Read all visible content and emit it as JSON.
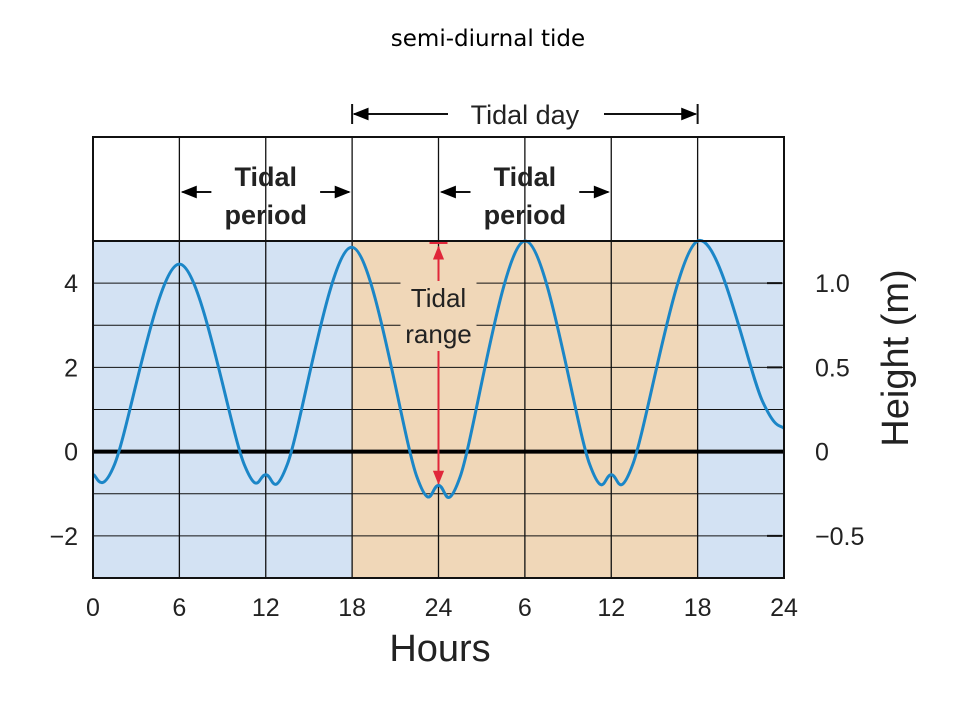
{
  "page_title": "semi-diurnal tide",
  "chart_data": {
    "type": "line",
    "title": "semi-diurnal tide",
    "xlabel": "Hours",
    "ylabel": "Height (m)",
    "x_ticks": [
      "0",
      "6",
      "12",
      "18",
      "24",
      "6",
      "12",
      "18",
      "24"
    ],
    "x_range": [
      0,
      48
    ],
    "y_left_ticks": [
      {
        "value": 4,
        "label": "4"
      },
      {
        "value": 2,
        "label": "2"
      },
      {
        "value": 0,
        "label": "0"
      },
      {
        "value": -2,
        "label": "−2"
      }
    ],
    "y_right_ticks": [
      {
        "value": 1.0,
        "label": "1.0"
      },
      {
        "value": 0.5,
        "label": "0.5"
      },
      {
        "value": 0,
        "label": "0"
      },
      {
        "value": -0.5,
        "label": "−0.5"
      }
    ],
    "y_range": [
      -3,
      5
    ],
    "grid": true,
    "shaded_interval": [
      18,
      42
    ],
    "colors": {
      "background": "#d3e2f3",
      "tidal_day": "#f0d7b8",
      "line": "#1b86c7",
      "range_arrow": "#e0273a",
      "zero_line": "#000000"
    },
    "series": [
      {
        "values": [
          {
            "x": 0,
            "y": -0.55
          },
          {
            "x": 1.5,
            "y": -0.3
          },
          {
            "x": 6,
            "y": 4.45
          },
          {
            "x": 10.5,
            "y": -0.3
          },
          {
            "x": 12,
            "y": -0.55
          },
          {
            "x": 13.5,
            "y": -0.3
          },
          {
            "x": 18,
            "y": 4.85
          },
          {
            "x": 22.5,
            "y": -0.6
          },
          {
            "x": 24,
            "y": -0.8
          },
          {
            "x": 25.5,
            "y": -0.6
          },
          {
            "x": 30,
            "y": 5.0
          },
          {
            "x": 34.5,
            "y": -0.3
          },
          {
            "x": 36,
            "y": -0.55
          },
          {
            "x": 37.5,
            "y": -0.3
          },
          {
            "x": 42,
            "y": 5.0
          },
          {
            "x": 46.5,
            "y": 1.2
          },
          {
            "x": 48,
            "y": 0.55
          }
        ]
      }
    ],
    "annotations": {
      "tidal_day": {
        "label": "Tidal day",
        "from": 18,
        "to": 42
      },
      "tidal_periods": [
        {
          "label_line1": "Tidal",
          "label_line2": "period",
          "from": 6,
          "to": 18
        },
        {
          "label_line1": "Tidal",
          "label_line2": "period",
          "from": 24,
          "to": 36
        }
      ],
      "tidal_range": {
        "label_line1": "Tidal",
        "label_line2": "range",
        "x": 24,
        "from": -0.8,
        "to": 5.0
      }
    }
  }
}
